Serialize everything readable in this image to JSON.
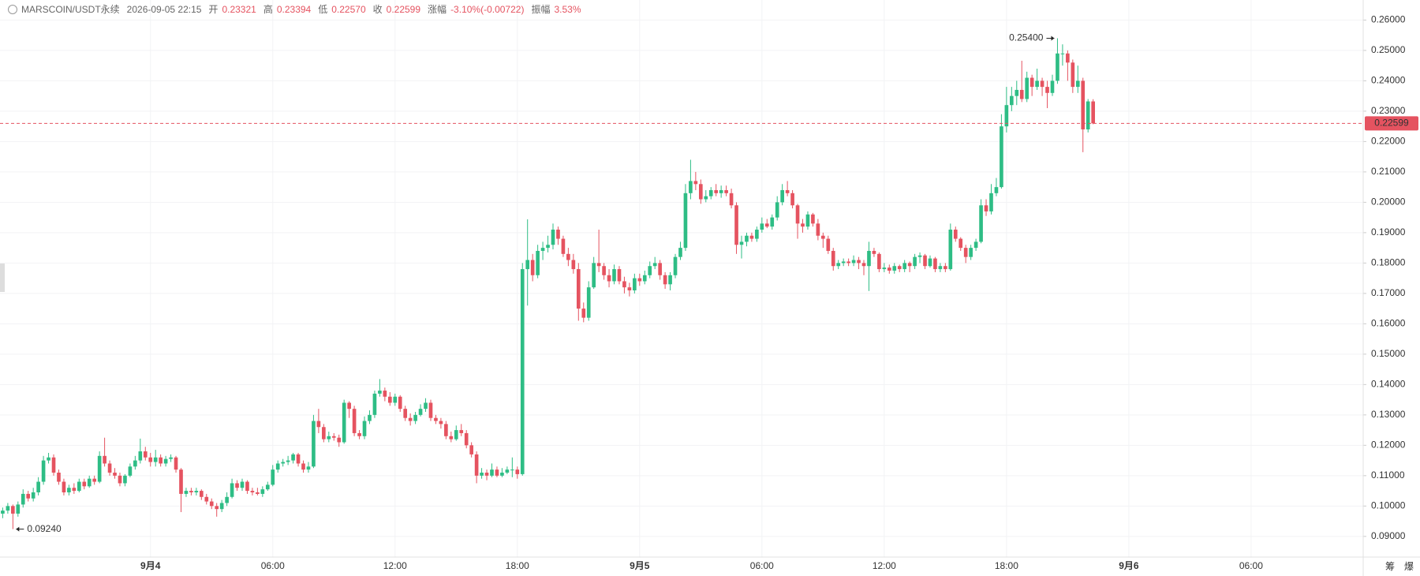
{
  "chart_data": {
    "type": "candlestick",
    "header": {
      "symbol": "MARSCOIN/USDT永续",
      "time": "2026-09-05 22:15",
      "fields": [
        {
          "label": "开",
          "value": "0.23321"
        },
        {
          "label": "高",
          "value": "0.23394"
        },
        {
          "label": "低",
          "value": "0.22570"
        },
        {
          "label": "收",
          "value": "0.22599"
        },
        {
          "label": "涨幅",
          "value": "-3.10%(-0.00722)"
        },
        {
          "label": "振幅",
          "value": "3.53%"
        }
      ]
    },
    "up_color": "#2ebd85",
    "down_color": "#e55360",
    "open": [
      0.0975,
      0.0985,
      0.1,
      0.0975,
      0.1005,
      0.104,
      0.1025,
      0.1045,
      0.108,
      0.115,
      0.116,
      0.111,
      0.108,
      0.1045,
      0.106,
      0.105,
      0.108,
      0.1065,
      0.109,
      0.108,
      0.1165,
      0.114,
      0.111,
      0.11,
      0.1075,
      0.11,
      0.113,
      0.115,
      0.118,
      0.116,
      0.1145,
      0.116,
      0.114,
      0.1155,
      0.116,
      0.112,
      0.104,
      0.105,
      0.1045,
      0.105,
      0.103,
      0.1015,
      0.1,
      0.099,
      0.101,
      0.103,
      0.1075,
      0.106,
      0.108,
      0.105,
      0.1045,
      0.104,
      0.1055,
      0.107,
      0.112,
      0.114,
      0.1145,
      0.115,
      0.117,
      0.114,
      0.112,
      0.113,
      0.128,
      0.126,
      0.122,
      0.123,
      0.1225,
      0.121,
      0.134,
      0.132,
      0.124,
      0.123,
      0.128,
      0.13,
      0.137,
      0.138,
      0.136,
      0.134,
      0.136,
      0.132,
      0.129,
      0.128,
      0.13,
      0.132,
      0.134,
      0.129,
      0.128,
      0.127,
      0.123,
      0.122,
      0.125,
      0.124,
      0.12,
      0.117,
      0.11,
      0.111,
      0.11,
      0.112,
      0.11,
      0.111,
      0.112,
      0.112,
      0.1105,
      0.178,
      0.181,
      0.176,
      0.184,
      0.185,
      0.186,
      0.191,
      0.188,
      0.183,
      0.181,
      0.178,
      0.165,
      0.162,
      0.172,
      0.18,
      0.179,
      0.176,
      0.174,
      0.178,
      0.174,
      0.172,
      0.171,
      0.175,
      0.174,
      0.176,
      0.179,
      0.18,
      0.176,
      0.173,
      0.176,
      0.182,
      0.185,
      0.203,
      0.207,
      0.206,
      0.201,
      0.202,
      0.204,
      0.203,
      0.204,
      0.203,
      0.199,
      0.186,
      0.187,
      0.189,
      0.188,
      0.191,
      0.193,
      0.192,
      0.195,
      0.2,
      0.204,
      0.203,
      0.199,
      0.193,
      0.192,
      0.196,
      0.193,
      0.189,
      0.188,
      0.184,
      0.179,
      0.18,
      0.1805,
      0.18,
      0.181,
      0.18,
      0.179,
      0.184,
      0.183,
      0.178,
      0.1785,
      0.1775,
      0.179,
      0.178,
      0.18,
      0.179,
      0.182,
      0.1825,
      0.179,
      0.1815,
      0.178,
      0.179,
      0.178,
      0.191,
      0.188,
      0.185,
      0.182,
      0.185,
      0.187,
      0.199,
      0.197,
      0.203,
      0.205,
      0.225,
      0.232,
      0.235,
      0.237,
      0.234,
      0.241,
      0.238,
      0.24,
      0.238,
      0.236,
      0.24,
      0.249,
      0.249,
      0.246,
      0.238,
      0.24,
      0.224,
      0.23321
    ],
    "high": [
      0.0995,
      0.101,
      0.1005,
      0.1015,
      0.1055,
      0.105,
      0.106,
      0.1095,
      0.1165,
      0.1175,
      0.117,
      0.112,
      0.109,
      0.107,
      0.1075,
      0.109,
      0.109,
      0.11,
      0.11,
      0.118,
      0.1225,
      0.115,
      0.1125,
      0.111,
      0.1105,
      0.114,
      0.1165,
      0.1222,
      0.1195,
      0.1175,
      0.1185,
      0.117,
      0.1165,
      0.117,
      0.1165,
      0.1125,
      0.106,
      0.106,
      0.106,
      0.1055,
      0.104,
      0.1025,
      0.101,
      0.102,
      0.1045,
      0.109,
      0.1085,
      0.109,
      0.1085,
      0.106,
      0.106,
      0.1065,
      0.108,
      0.1135,
      0.115,
      0.1155,
      0.1165,
      0.1175,
      0.1175,
      0.115,
      0.1145,
      0.13,
      0.132,
      0.127,
      0.1245,
      0.124,
      0.1235,
      0.135,
      0.1345,
      0.133,
      0.125,
      0.1295,
      0.1315,
      0.138,
      0.1418,
      0.139,
      0.1375,
      0.137,
      0.1365,
      0.133,
      0.1305,
      0.131,
      0.1335,
      0.1355,
      0.135,
      0.13,
      0.129,
      0.128,
      0.1245,
      0.1265,
      0.127,
      0.125,
      0.121,
      0.118,
      0.1125,
      0.112,
      0.114,
      0.113,
      0.1125,
      0.113,
      0.116,
      0.113,
      0.18,
      0.1944,
      0.183,
      0.186,
      0.187,
      0.189,
      0.193,
      0.192,
      0.189,
      0.185,
      0.183,
      0.18,
      0.167,
      0.174,
      0.182,
      0.191,
      0.18,
      0.178,
      0.1795,
      0.179,
      0.1755,
      0.1735,
      0.1765,
      0.1765,
      0.1775,
      0.1805,
      0.182,
      0.181,
      0.177,
      0.177,
      0.183,
      0.187,
      0.206,
      0.214,
      0.21,
      0.2075,
      0.204,
      0.205,
      0.206,
      0.2055,
      0.2055,
      0.2045,
      0.2,
      0.189,
      0.19,
      0.19,
      0.192,
      0.195,
      0.1945,
      0.196,
      0.202,
      0.206,
      0.207,
      0.204,
      0.1995,
      0.1945,
      0.197,
      0.1965,
      0.1945,
      0.19,
      0.189,
      0.185,
      0.181,
      0.1815,
      0.1815,
      0.1825,
      0.182,
      0.181,
      0.187,
      0.185,
      0.1835,
      0.18,
      0.1795,
      0.18,
      0.1795,
      0.181,
      0.1805,
      0.183,
      0.1835,
      0.183,
      0.1825,
      0.182,
      0.18,
      0.18,
      0.193,
      0.192,
      0.1885,
      0.186,
      0.186,
      0.188,
      0.201,
      0.201,
      0.206,
      0.208,
      0.229,
      0.238,
      0.238,
      0.24,
      0.2466,
      0.243,
      0.242,
      0.244,
      0.241,
      0.24,
      0.242,
      0.254,
      0.252,
      0.25,
      0.247,
      0.245,
      0.241,
      0.234,
      0.23394
    ],
    "low": [
      0.096,
      0.0975,
      0.0924,
      0.0965,
      0.0995,
      0.1015,
      0.1015,
      0.1035,
      0.107,
      0.114,
      0.11,
      0.107,
      0.1035,
      0.1035,
      0.104,
      0.1045,
      0.1055,
      0.106,
      0.107,
      0.1075,
      0.113,
      0.11,
      0.109,
      0.1065,
      0.1065,
      0.1095,
      0.112,
      0.114,
      0.115,
      0.113,
      0.113,
      0.113,
      0.113,
      0.1145,
      0.111,
      0.098,
      0.103,
      0.1035,
      0.1035,
      0.102,
      0.1005,
      0.099,
      0.0965,
      0.098,
      0.1,
      0.1025,
      0.105,
      0.105,
      0.104,
      0.1035,
      0.1035,
      0.103,
      0.105,
      0.1065,
      0.111,
      0.113,
      0.1135,
      0.114,
      0.113,
      0.111,
      0.111,
      0.1125,
      0.124,
      0.121,
      0.121,
      0.1215,
      0.1195,
      0.1205,
      0.129,
      0.123,
      0.122,
      0.122,
      0.127,
      0.129,
      0.136,
      0.1345,
      0.133,
      0.133,
      0.131,
      0.128,
      0.1265,
      0.127,
      0.1295,
      0.131,
      0.128,
      0.127,
      0.1255,
      0.122,
      0.121,
      0.1215,
      0.123,
      0.119,
      0.116,
      0.1075,
      0.109,
      0.1085,
      0.1095,
      0.1095,
      0.1095,
      0.1105,
      0.1095,
      0.109,
      0.11,
      0.166,
      0.174,
      0.175,
      0.181,
      0.1835,
      0.1845,
      0.186,
      0.182,
      0.179,
      0.1765,
      0.161,
      0.1605,
      0.161,
      0.1715,
      0.177,
      0.1745,
      0.172,
      0.173,
      0.173,
      0.17,
      0.169,
      0.17,
      0.1725,
      0.173,
      0.175,
      0.178,
      0.1745,
      0.1715,
      0.171,
      0.175,
      0.181,
      0.184,
      0.201,
      0.204,
      0.1995,
      0.2,
      0.201,
      0.202,
      0.2015,
      0.202,
      0.198,
      0.183,
      0.1815,
      0.1855,
      0.187,
      0.187,
      0.19,
      0.1915,
      0.191,
      0.194,
      0.199,
      0.202,
      0.198,
      0.188,
      0.19,
      0.191,
      0.192,
      0.1875,
      0.185,
      0.183,
      0.1775,
      0.178,
      0.179,
      0.179,
      0.179,
      0.178,
      0.176,
      0.1708,
      0.182,
      0.177,
      0.177,
      0.1765,
      0.1765,
      0.177,
      0.177,
      0.177,
      0.178,
      0.18,
      0.178,
      0.1785,
      0.177,
      0.177,
      0.177,
      0.1775,
      0.187,
      0.184,
      0.18,
      0.181,
      0.184,
      0.1865,
      0.1955,
      0.196,
      0.202,
      0.2045,
      0.223,
      0.23,
      0.232,
      0.233,
      0.233,
      0.235,
      0.237,
      0.235,
      0.231,
      0.235,
      0.239,
      0.245,
      0.24,
      0.236,
      0.236,
      0.2165,
      0.223,
      0.2257
    ],
    "close": [
      0.0985,
      0.1,
      0.0975,
      0.1005,
      0.104,
      0.1025,
      0.1045,
      0.108,
      0.115,
      0.116,
      0.111,
      0.108,
      0.1045,
      0.106,
      0.105,
      0.108,
      0.1065,
      0.109,
      0.108,
      0.1165,
      0.114,
      0.111,
      0.11,
      0.1075,
      0.11,
      0.113,
      0.115,
      0.118,
      0.116,
      0.1145,
      0.116,
      0.114,
      0.1155,
      0.116,
      0.112,
      0.104,
      0.105,
      0.1045,
      0.105,
      0.103,
      0.1015,
      0.1,
      0.099,
      0.101,
      0.103,
      0.1075,
      0.106,
      0.108,
      0.105,
      0.1045,
      0.104,
      0.1055,
      0.107,
      0.112,
      0.114,
      0.1145,
      0.115,
      0.117,
      0.114,
      0.112,
      0.113,
      0.128,
      0.126,
      0.122,
      0.123,
      0.1225,
      0.121,
      0.134,
      0.132,
      0.124,
      0.123,
      0.128,
      0.13,
      0.137,
      0.138,
      0.136,
      0.134,
      0.136,
      0.132,
      0.129,
      0.128,
      0.13,
      0.132,
      0.134,
      0.129,
      0.128,
      0.127,
      0.123,
      0.122,
      0.125,
      0.124,
      0.12,
      0.117,
      0.11,
      0.111,
      0.11,
      0.112,
      0.11,
      0.111,
      0.112,
      0.112,
      0.1105,
      0.178,
      0.181,
      0.176,
      0.184,
      0.185,
      0.186,
      0.191,
      0.188,
      0.183,
      0.181,
      0.178,
      0.165,
      0.162,
      0.172,
      0.18,
      0.179,
      0.176,
      0.174,
      0.178,
      0.174,
      0.172,
      0.171,
      0.175,
      0.174,
      0.176,
      0.179,
      0.18,
      0.176,
      0.173,
      0.176,
      0.182,
      0.185,
      0.203,
      0.207,
      0.206,
      0.201,
      0.202,
      0.204,
      0.203,
      0.204,
      0.203,
      0.199,
      0.186,
      0.187,
      0.189,
      0.188,
      0.191,
      0.193,
      0.192,
      0.195,
      0.2,
      0.204,
      0.203,
      0.199,
      0.193,
      0.192,
      0.196,
      0.193,
      0.189,
      0.188,
      0.184,
      0.179,
      0.18,
      0.1805,
      0.18,
      0.181,
      0.18,
      0.179,
      0.184,
      0.183,
      0.178,
      0.1785,
      0.1775,
      0.179,
      0.178,
      0.18,
      0.179,
      0.182,
      0.1825,
      0.179,
      0.1815,
      0.178,
      0.179,
      0.178,
      0.191,
      0.188,
      0.185,
      0.182,
      0.185,
      0.187,
      0.199,
      0.197,
      0.203,
      0.205,
      0.225,
      0.232,
      0.235,
      0.237,
      0.234,
      0.241,
      0.238,
      0.24,
      0.238,
      0.236,
      0.24,
      0.249,
      0.249,
      0.246,
      0.238,
      0.24,
      0.224,
      0.23321,
      0.22599
    ],
    "xlim": [
      -0.53,
      267
    ],
    "xticks": [
      {
        "value": 29,
        "label": "9月4"
      },
      {
        "value": 53,
        "label": "06:00"
      },
      {
        "value": 77,
        "label": "12:00"
      },
      {
        "value": 101,
        "label": "18:00"
      },
      {
        "value": 125,
        "label": "9月5"
      },
      {
        "value": 149,
        "label": "06:00"
      },
      {
        "value": 173,
        "label": "12:00"
      },
      {
        "value": 197,
        "label": "18:00"
      },
      {
        "value": 221,
        "label": "9月6"
      },
      {
        "value": 245,
        "label": "06:00"
      }
    ],
    "ylim": [
      0.0832,
      0.2666
    ],
    "yticks": [
      {
        "value": 0.09,
        "label": "0.09000"
      },
      {
        "value": 0.1,
        "label": "0.10000"
      },
      {
        "value": 0.11,
        "label": "0.11000"
      },
      {
        "value": 0.12,
        "label": "0.12000"
      },
      {
        "value": 0.13,
        "label": "0.13000"
      },
      {
        "value": 0.14,
        "label": "0.14000"
      },
      {
        "value": 0.15,
        "label": "0.15000"
      },
      {
        "value": 0.16,
        "label": "0.16000"
      },
      {
        "value": 0.17,
        "label": "0.17000"
      },
      {
        "value": 0.18,
        "label": "0.18000"
      },
      {
        "value": 0.19,
        "label": "0.19000"
      },
      {
        "value": 0.2,
        "label": "0.20000"
      },
      {
        "value": 0.21,
        "label": "0.21000"
      },
      {
        "value": 0.22,
        "label": "0.22000"
      },
      {
        "value": 0.23,
        "label": "0.23000"
      },
      {
        "value": 0.24,
        "label": "0.24000"
      },
      {
        "value": 0.25,
        "label": "0.25000"
      },
      {
        "value": 0.26,
        "label": "0.26000"
      }
    ],
    "grid": true,
    "max_label": "0.25400",
    "min_label": "0.09240",
    "last_label": "0.22599",
    "toolbar": [
      "筹",
      "爆"
    ]
  }
}
